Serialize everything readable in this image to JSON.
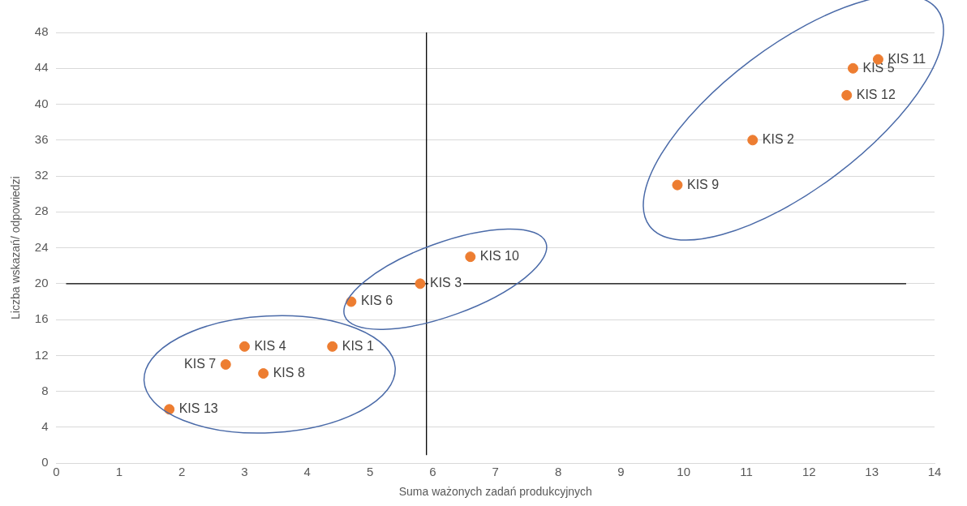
{
  "chart_data": {
    "type": "scatter",
    "xlabel": "Suma ważonych zadań produkcyjnych",
    "ylabel": "Liczba wskazań/ odpowiedzi",
    "x": [
      13.1,
      12.7,
      12.6,
      11.1,
      9.9,
      6.6,
      5.8,
      4.7,
      4.4,
      3.0,
      3.3,
      2.7,
      1.8
    ],
    "values": [
      45,
      44,
      41,
      36,
      31,
      23,
      20,
      18,
      13,
      13,
      10,
      11,
      6
    ],
    "color": "#ed7d31",
    "marker": "circle",
    "xlim": [
      0,
      14
    ],
    "xticks": [
      0,
      1,
      2,
      3,
      4,
      5,
      6,
      7,
      8,
      9,
      10,
      11,
      12,
      13,
      14
    ],
    "ylim": [
      0,
      48
    ],
    "yticks": [
      0,
      4,
      8,
      12,
      16,
      20,
      24,
      28,
      32,
      36,
      40,
      44,
      48
    ],
    "grid": "y",
    "legend": false,
    "ref_lines": [
      {
        "axis": "x",
        "value": 5.9,
        "color": "#000000"
      },
      {
        "axis": "y",
        "value": 20,
        "color": "#000000"
      }
    ],
    "annotations": [
      {
        "text": "KIS 11",
        "x": 13.1,
        "y": 45
      },
      {
        "text": "KIS 5",
        "x": 12.7,
        "y": 44
      },
      {
        "text": "KIS 12",
        "x": 12.6,
        "y": 41
      },
      {
        "text": "KIS 2",
        "x": 11.1,
        "y": 36
      },
      {
        "text": "KIS 9",
        "x": 9.9,
        "y": 31
      },
      {
        "text": "KIS 10",
        "x": 6.6,
        "y": 23
      },
      {
        "text": "KIS 3",
        "x": 5.8,
        "y": 20
      },
      {
        "text": "KIS 6",
        "x": 4.7,
        "y": 18
      },
      {
        "text": "KIS 1",
        "x": 4.4,
        "y": 13
      },
      {
        "text": "KIS 4",
        "x": 3.0,
        "y": 13
      },
      {
        "text": "KIS 8",
        "x": 3.3,
        "y": 10
      },
      {
        "text": "KIS 7",
        "x": 2.7,
        "y": 11
      },
      {
        "text": "KIS 13",
        "x": 1.8,
        "y": 6
      }
    ]
  }
}
